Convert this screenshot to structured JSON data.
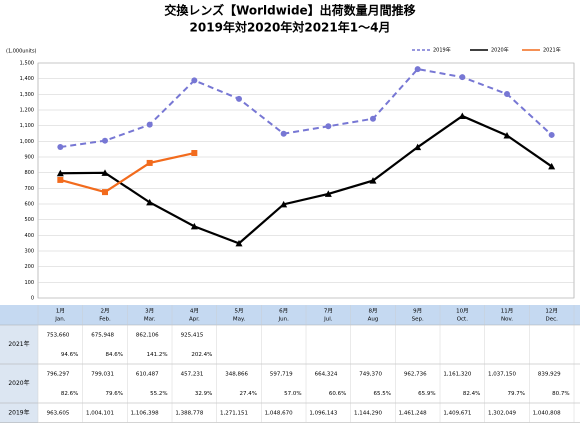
{
  "chart_data": {
    "type": "line",
    "title": "交換レンズ【Worldwide】出荷数量月間推移",
    "subtitle": "2019年対2020年対2021年1～4月",
    "y_unit": "(1,000units)",
    "categories": [
      "1月",
      "2月",
      "3月",
      "4月",
      "5月",
      "6月",
      "7月",
      "8月",
      "9月",
      "10月",
      "11月",
      "12月"
    ],
    "categories_en": [
      "Jan.",
      "Feb.",
      "Mar.",
      "Apr.",
      "May.",
      "Jun.",
      "Jul.",
      "Aug",
      "Sep.",
      "Oct.",
      "Nov.",
      "Dec."
    ],
    "ylim": [
      0,
      1500
    ],
    "yticks": [
      0,
      100,
      200,
      300,
      400,
      500,
      600,
      700,
      800,
      900,
      {
        "value": 1000,
        "label": "1,000"
      },
      {
        "value": 1100,
        "label": "1,100"
      },
      {
        "value": 1200,
        "label": "1,200"
      },
      {
        "value": 1300,
        "label": "1,300"
      },
      {
        "value": 1400,
        "label": "1,400"
      },
      {
        "value": 1500,
        "label": "1,500"
      }
    ],
    "grid": true,
    "legend": "top-right",
    "series": [
      {
        "name": "2019年",
        "color": "#7777d4",
        "dash": true,
        "marker": "circle",
        "values": [
          963.605,
          1004.101,
          1106.398,
          1388.778,
          1271.151,
          1048.67,
          1096.143,
          1144.29,
          1461.248,
          1409.671,
          1302.049,
          1040.808
        ],
        "value_labels": [
          "963,605",
          "1,004,101",
          "1,106,398",
          "1,388,778",
          "1,271,151",
          "1,048,670",
          "1,096,143",
          "1,144,290",
          "1,461,248",
          "1,409,671",
          "1,302,049",
          "1,040,808"
        ]
      },
      {
        "name": "2020年",
        "color": "#000000",
        "dash": false,
        "marker": "triangle",
        "values": [
          796.297,
          799.031,
          610.487,
          457.231,
          348.866,
          597.719,
          664.324,
          749.37,
          962.736,
          1161.32,
          1037.15,
          839.929
        ],
        "value_labels": [
          "796,297",
          "799,031",
          "610,487",
          "457,231",
          "348,866",
          "597,719",
          "664,324",
          "749,370",
          "962,736",
          "1,161,320",
          "1,037,150",
          "839,929"
        ],
        "yoy_labels": [
          "82.6%",
          "79.6%",
          "55.2%",
          "32.9%",
          "27.4%",
          "57.0%",
          "60.6%",
          "65.5%",
          "65.9%",
          "82.4%",
          "79.7%",
          "80.7%"
        ]
      },
      {
        "name": "2021年",
        "color": "#f26b1d",
        "dash": false,
        "marker": "square",
        "values": [
          753.66,
          675.948,
          862.106,
          925.415,
          null,
          null,
          null,
          null,
          null,
          null,
          null,
          null
        ],
        "value_labels": [
          "753,660",
          "675,948",
          "862,106",
          "925,415",
          null,
          null,
          null,
          null,
          null,
          null,
          null,
          null
        ],
        "yoy_labels": [
          "94.6%",
          "84.6%",
          "141.2%",
          "202.4%",
          null,
          null,
          null,
          null,
          null,
          null,
          null,
          null
        ]
      }
    ]
  }
}
